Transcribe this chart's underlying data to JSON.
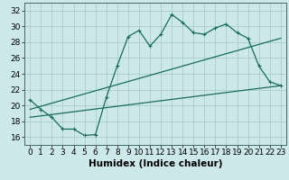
{
  "title": "",
  "xlabel": "Humidex (Indice chaleur)",
  "ylabel": "",
  "background_color": "#cce8e8",
  "grid_color": "#aacccc",
  "line_color": "#1a6b5a",
  "xlim": [
    -0.5,
    23.5
  ],
  "ylim": [
    15.0,
    33.0
  ],
  "yticks": [
    16,
    18,
    20,
    22,
    24,
    26,
    28,
    30,
    32
  ],
  "xticks": [
    0,
    1,
    2,
    3,
    4,
    5,
    6,
    7,
    8,
    9,
    10,
    11,
    12,
    13,
    14,
    15,
    16,
    17,
    18,
    19,
    20,
    21,
    22,
    23
  ],
  "curve1_x": [
    0,
    1,
    2,
    3,
    4,
    5,
    6,
    7,
    8,
    9,
    10,
    11,
    12,
    13,
    14,
    15,
    16,
    17,
    18,
    19,
    20,
    21,
    22,
    23
  ],
  "curve1_y": [
    20.7,
    19.5,
    18.5,
    17.0,
    17.0,
    16.2,
    16.3,
    21.0,
    25.0,
    28.7,
    29.5,
    27.5,
    29.0,
    31.5,
    30.5,
    29.2,
    29.0,
    29.8,
    30.3,
    29.2,
    28.5,
    25.0,
    23.0,
    22.5
  ],
  "curve2_x": [
    0,
    23
  ],
  "curve2_y": [
    18.5,
    22.5
  ],
  "curve3_x": [
    0,
    23
  ],
  "curve3_y": [
    19.5,
    28.5
  ],
  "xlabel_fontsize": 7.5,
  "tick_fontsize": 6.5
}
